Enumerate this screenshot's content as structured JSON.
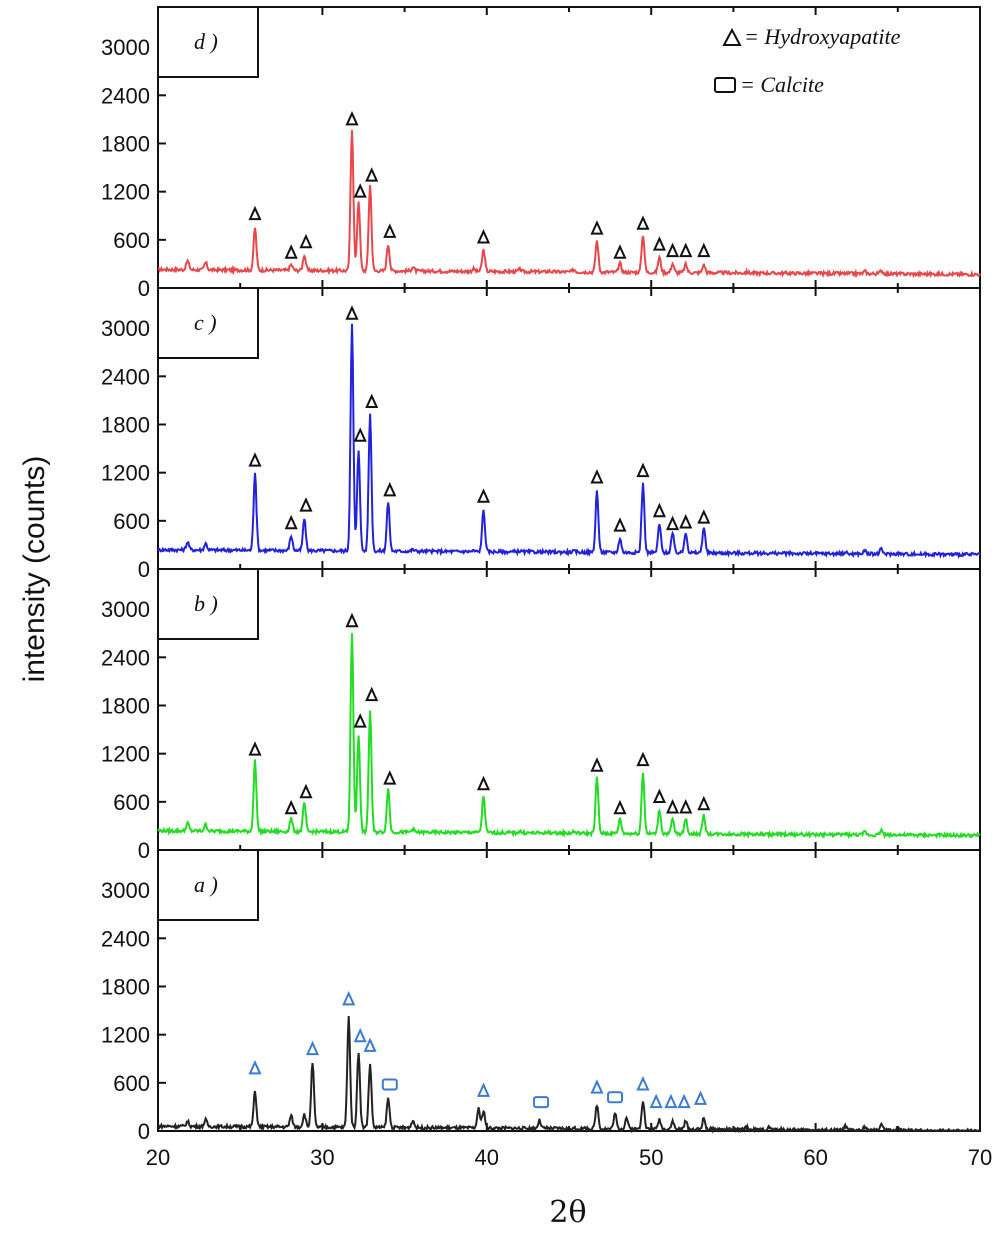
{
  "chart_data": {
    "type": "line",
    "ylabel": "intensity (counts)",
    "xlabel": "2θ",
    "xlim": [
      20,
      70
    ],
    "ylim": [
      0,
      3500
    ],
    "x_ticks": [
      "20",
      "30",
      "40",
      "50",
      "60",
      "70"
    ],
    "y_ticks": [
      "0",
      "600",
      "1200",
      "1800",
      "2400",
      "3000"
    ],
    "legend": [
      {
        "symbol": "triangle",
        "label": "= Hydroxyapatite"
      },
      {
        "symbol": "square",
        "label": "= Calcite"
      }
    ],
    "legend_position": "top-right",
    "colors": {
      "d": "#e8474b",
      "c": "#2222dd",
      "b": "#22dd22",
      "a": "#222222",
      "marker_a": "#3a7bd5"
    },
    "panels": [
      {
        "id": "d",
        "label": "d )",
        "color": "#e8474b",
        "baseline": 230,
        "peaks": [
          [
            21.8,
            340
          ],
          [
            22.9,
            320
          ],
          [
            25.9,
            760
          ],
          [
            28.1,
            300
          ],
          [
            28.9,
            420
          ],
          [
            31.8,
            2000
          ],
          [
            32.2,
            1100
          ],
          [
            32.9,
            1300
          ],
          [
            34.0,
            560
          ],
          [
            35.5,
            280
          ],
          [
            39.2,
            260
          ],
          [
            39.8,
            500
          ],
          [
            42.0,
            260
          ],
          [
            43.8,
            240
          ],
          [
            45.3,
            260
          ],
          [
            46.7,
            620
          ],
          [
            48.1,
            340
          ],
          [
            49.5,
            700
          ],
          [
            50.5,
            420
          ],
          [
            51.3,
            340
          ],
          [
            52.1,
            330
          ],
          [
            53.2,
            330
          ],
          [
            55.8,
            240
          ],
          [
            57.2,
            230
          ],
          [
            61.8,
            230
          ],
          [
            63.0,
            260
          ],
          [
            64.0,
            270
          ]
        ],
        "markers": [
          {
            "type": "triangle",
            "x": 25.9,
            "y": 820
          },
          {
            "type": "triangle",
            "x": 28.1,
            "y": 340
          },
          {
            "type": "triangle",
            "x": 29.0,
            "y": 470
          },
          {
            "type": "triangle",
            "x": 31.8,
            "y": 2000
          },
          {
            "type": "triangle",
            "x": 32.3,
            "y": 1100
          },
          {
            "type": "triangle",
            "x": 33.0,
            "y": 1300
          },
          {
            "type": "triangle",
            "x": 34.1,
            "y": 600
          },
          {
            "type": "triangle",
            "x": 39.8,
            "y": 530
          },
          {
            "type": "triangle",
            "x": 46.7,
            "y": 640
          },
          {
            "type": "triangle",
            "x": 48.1,
            "y": 340
          },
          {
            "type": "triangle",
            "x": 49.5,
            "y": 700
          },
          {
            "type": "triangle",
            "x": 50.5,
            "y": 440
          },
          {
            "type": "triangle",
            "x": 51.3,
            "y": 360
          },
          {
            "type": "triangle",
            "x": 52.1,
            "y": 360
          },
          {
            "type": "triangle",
            "x": 53.2,
            "y": 360
          }
        ]
      },
      {
        "id": "c",
        "label": "c )",
        "color": "#2222dd",
        "baseline": 240,
        "peaks": [
          [
            21.8,
            340
          ],
          [
            22.9,
            320
          ],
          [
            25.9,
            1220
          ],
          [
            28.1,
            420
          ],
          [
            28.9,
            640
          ],
          [
            31.8,
            3060
          ],
          [
            32.2,
            1500
          ],
          [
            32.9,
            1950
          ],
          [
            34.0,
            850
          ],
          [
            35.5,
            260
          ],
          [
            39.2,
            250
          ],
          [
            39.8,
            760
          ],
          [
            42.0,
            250
          ],
          [
            43.8,
            240
          ],
          [
            45.3,
            250
          ],
          [
            46.7,
            1000
          ],
          [
            48.1,
            410
          ],
          [
            49.5,
            1100
          ],
          [
            50.5,
            600
          ],
          [
            51.3,
            480
          ],
          [
            52.1,
            500
          ],
          [
            53.2,
            560
          ],
          [
            55.8,
            240
          ],
          [
            57.2,
            240
          ],
          [
            61.8,
            260
          ],
          [
            63.0,
            280
          ],
          [
            64.0,
            300
          ],
          [
            65.0,
            250
          ]
        ],
        "markers": [
          {
            "type": "triangle",
            "x": 25.9,
            "y": 1250
          },
          {
            "type": "triangle",
            "x": 28.1,
            "y": 470
          },
          {
            "type": "triangle",
            "x": 29.0,
            "y": 690
          },
          {
            "type": "triangle",
            "x": 31.8,
            "y": 3080
          },
          {
            "type": "triangle",
            "x": 32.3,
            "y": 1560
          },
          {
            "type": "triangle",
            "x": 33.0,
            "y": 1980
          },
          {
            "type": "triangle",
            "x": 34.1,
            "y": 880
          },
          {
            "type": "triangle",
            "x": 39.8,
            "y": 800
          },
          {
            "type": "triangle",
            "x": 46.7,
            "y": 1040
          },
          {
            "type": "triangle",
            "x": 48.1,
            "y": 440
          },
          {
            "type": "triangle",
            "x": 49.5,
            "y": 1120
          },
          {
            "type": "triangle",
            "x": 50.5,
            "y": 620
          },
          {
            "type": "triangle",
            "x": 51.3,
            "y": 460
          },
          {
            "type": "triangle",
            "x": 52.1,
            "y": 480
          },
          {
            "type": "triangle",
            "x": 53.2,
            "y": 540
          }
        ]
      },
      {
        "id": "b",
        "label": "b )",
        "color": "#22dd22",
        "baseline": 240,
        "peaks": [
          [
            21.8,
            340
          ],
          [
            22.9,
            320
          ],
          [
            25.9,
            1120
          ],
          [
            28.1,
            400
          ],
          [
            28.9,
            600
          ],
          [
            31.8,
            2720
          ],
          [
            32.2,
            1450
          ],
          [
            32.9,
            1750
          ],
          [
            34.0,
            780
          ],
          [
            35.5,
            280
          ],
          [
            39.2,
            250
          ],
          [
            39.8,
            700
          ],
          [
            42.0,
            260
          ],
          [
            43.8,
            250
          ],
          [
            45.3,
            260
          ],
          [
            46.7,
            930
          ],
          [
            48.1,
            420
          ],
          [
            49.5,
            1000
          ],
          [
            50.5,
            540
          ],
          [
            51.3,
            420
          ],
          [
            52.1,
            430
          ],
          [
            53.2,
            470
          ],
          [
            55.8,
            240
          ],
          [
            57.2,
            240
          ],
          [
            61.8,
            250
          ],
          [
            63.0,
            280
          ],
          [
            64.0,
            300
          ],
          [
            65.0,
            250
          ]
        ],
        "markers": [
          {
            "type": "triangle",
            "x": 25.9,
            "y": 1150
          },
          {
            "type": "triangle",
            "x": 28.1,
            "y": 420
          },
          {
            "type": "triangle",
            "x": 29.0,
            "y": 620
          },
          {
            "type": "triangle",
            "x": 31.8,
            "y": 2750
          },
          {
            "type": "triangle",
            "x": 32.3,
            "y": 1500
          },
          {
            "type": "triangle",
            "x": 33.0,
            "y": 1830
          },
          {
            "type": "triangle",
            "x": 34.1,
            "y": 790
          },
          {
            "type": "triangle",
            "x": 39.8,
            "y": 720
          },
          {
            "type": "triangle",
            "x": 46.7,
            "y": 950
          },
          {
            "type": "triangle",
            "x": 48.1,
            "y": 420
          },
          {
            "type": "triangle",
            "x": 49.5,
            "y": 1020
          },
          {
            "type": "triangle",
            "x": 50.5,
            "y": 560
          },
          {
            "type": "triangle",
            "x": 51.3,
            "y": 430
          },
          {
            "type": "triangle",
            "x": 52.1,
            "y": 430
          },
          {
            "type": "triangle",
            "x": 53.2,
            "y": 470
          }
        ]
      },
      {
        "id": "a",
        "label": "a )",
        "color": "#222222",
        "baseline": 60,
        "peaks": [
          [
            21.8,
            120
          ],
          [
            22.9,
            140
          ],
          [
            25.9,
            500
          ],
          [
            28.1,
            200
          ],
          [
            28.9,
            220
          ],
          [
            29.4,
            860
          ],
          [
            31.6,
            1450
          ],
          [
            32.2,
            1000
          ],
          [
            32.9,
            850
          ],
          [
            34.0,
            420
          ],
          [
            35.5,
            150
          ],
          [
            39.5,
            300
          ],
          [
            39.8,
            280
          ],
          [
            43.2,
            160
          ],
          [
            46.7,
            360
          ],
          [
            47.8,
            250
          ],
          [
            48.5,
            200
          ],
          [
            49.5,
            420
          ],
          [
            50.5,
            180
          ],
          [
            51.3,
            160
          ],
          [
            52.1,
            160
          ],
          [
            53.2,
            200
          ],
          [
            55.8,
            90
          ],
          [
            57.2,
            90
          ],
          [
            61.8,
            110
          ],
          [
            63.0,
            100
          ],
          [
            64.0,
            140
          ],
          [
            65.0,
            100
          ]
        ],
        "markers": [
          {
            "type": "triangle",
            "x": 25.9,
            "y": 680
          },
          {
            "type": "triangle",
            "x": 29.4,
            "y": 920
          },
          {
            "type": "triangle",
            "x": 31.6,
            "y": 1540
          },
          {
            "type": "triangle",
            "x": 32.3,
            "y": 1080
          },
          {
            "type": "triangle",
            "x": 32.9,
            "y": 960
          },
          {
            "type": "square",
            "x": 34.1,
            "y": 480
          },
          {
            "type": "triangle",
            "x": 39.8,
            "y": 400
          },
          {
            "type": "square",
            "x": 43.3,
            "y": 260
          },
          {
            "type": "triangle",
            "x": 46.7,
            "y": 440
          },
          {
            "type": "square",
            "x": 47.8,
            "y": 320
          },
          {
            "type": "triangle",
            "x": 49.5,
            "y": 480
          },
          {
            "type": "triangle",
            "x": 50.3,
            "y": 260
          },
          {
            "type": "triangle",
            "x": 51.2,
            "y": 260
          },
          {
            "type": "triangle",
            "x": 52.0,
            "y": 260
          },
          {
            "type": "triangle",
            "x": 53.0,
            "y": 300
          }
        ]
      }
    ]
  }
}
